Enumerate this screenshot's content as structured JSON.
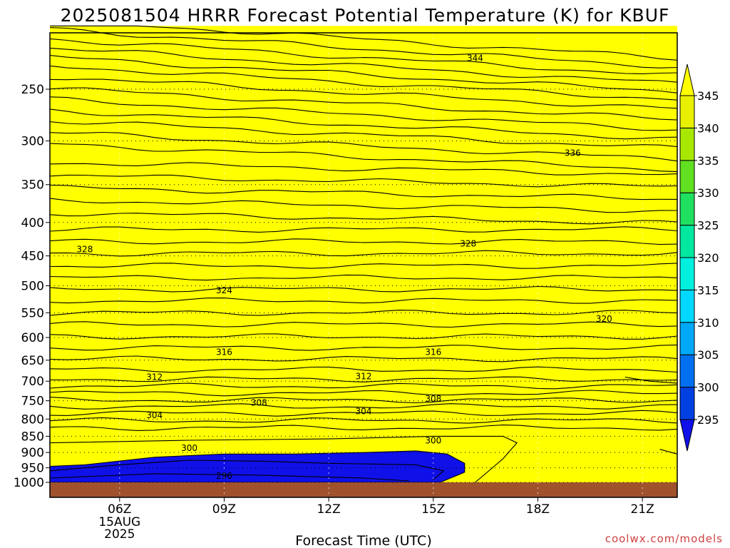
{
  "chart_data": {
    "type": "contour",
    "title": "2025081504 HRRR Forecast Potential Temperature (K) for KBUF",
    "xlabel": "Forecast Time (UTC)",
    "ylabel": "",
    "credit": "coolwx.com/models",
    "x_ticks": [
      {
        "hour": 6,
        "label": "06Z",
        "date_lines": [
          "15AUG",
          "2025"
        ]
      },
      {
        "hour": 9,
        "label": "09Z"
      },
      {
        "hour": 12,
        "label": "12Z"
      },
      {
        "hour": 15,
        "label": "15Z"
      },
      {
        "hour": 18,
        "label": "18Z"
      },
      {
        "hour": 21,
        "label": "21Z"
      }
    ],
    "xlim": [
      4.0,
      22.0
    ],
    "y_ticks": [
      250,
      300,
      350,
      400,
      450,
      500,
      550,
      600,
      650,
      700,
      750,
      800,
      850,
      900,
      950,
      1000
    ],
    "ylim_hpa": [
      200,
      1000
    ],
    "y_scale": "log-pressure",
    "grid": "dotted",
    "colorbar": {
      "levels": [
        295,
        300,
        305,
        310,
        315,
        320,
        325,
        330,
        335,
        340,
        345
      ],
      "colors": [
        "#1010e8",
        "#0040e0",
        "#0070f0",
        "#00a8f8",
        "#00d8ff",
        "#00f0e0",
        "#00e8a0",
        "#20e060",
        "#60e020",
        "#a8e800",
        "#e8f000",
        "#ffff00"
      ],
      "labels": [
        "295",
        "300",
        "305",
        "310",
        "315",
        "320",
        "325",
        "330",
        "335",
        "340",
        "345"
      ]
    },
    "contour_interval_K": 2,
    "contour_labels": [
      {
        "value": "344",
        "hour": 16.2,
        "hpa": 224
      },
      {
        "value": "336",
        "hour": 19.0,
        "hpa": 313
      },
      {
        "value": "328",
        "hour": 5.0,
        "hpa": 440
      },
      {
        "value": "328",
        "hour": 16.0,
        "hpa": 431
      },
      {
        "value": "324",
        "hour": 9.0,
        "hpa": 508
      },
      {
        "value": "320",
        "hour": 19.9,
        "hpa": 562
      },
      {
        "value": "316",
        "hour": 9.0,
        "hpa": 632
      },
      {
        "value": "316",
        "hour": 15.0,
        "hpa": 632
      },
      {
        "value": "312",
        "hour": 7.0,
        "hpa": 690
      },
      {
        "value": "312",
        "hour": 13.0,
        "hpa": 688
      },
      {
        "value": "308",
        "hour": 10.0,
        "hpa": 755
      },
      {
        "value": "308",
        "hour": 15.0,
        "hpa": 745
      },
      {
        "value": "304",
        "hour": 7.0,
        "hpa": 789
      },
      {
        "value": "304",
        "hour": 13.0,
        "hpa": 779
      },
      {
        "value": "300",
        "hour": 8.0,
        "hpa": 886
      },
      {
        "value": "300",
        "hour": 15.0,
        "hpa": 863
      },
      {
        "value": "296",
        "hour": 9.0,
        "hpa": 977
      }
    ],
    "surface_color": "#a0522d"
  }
}
